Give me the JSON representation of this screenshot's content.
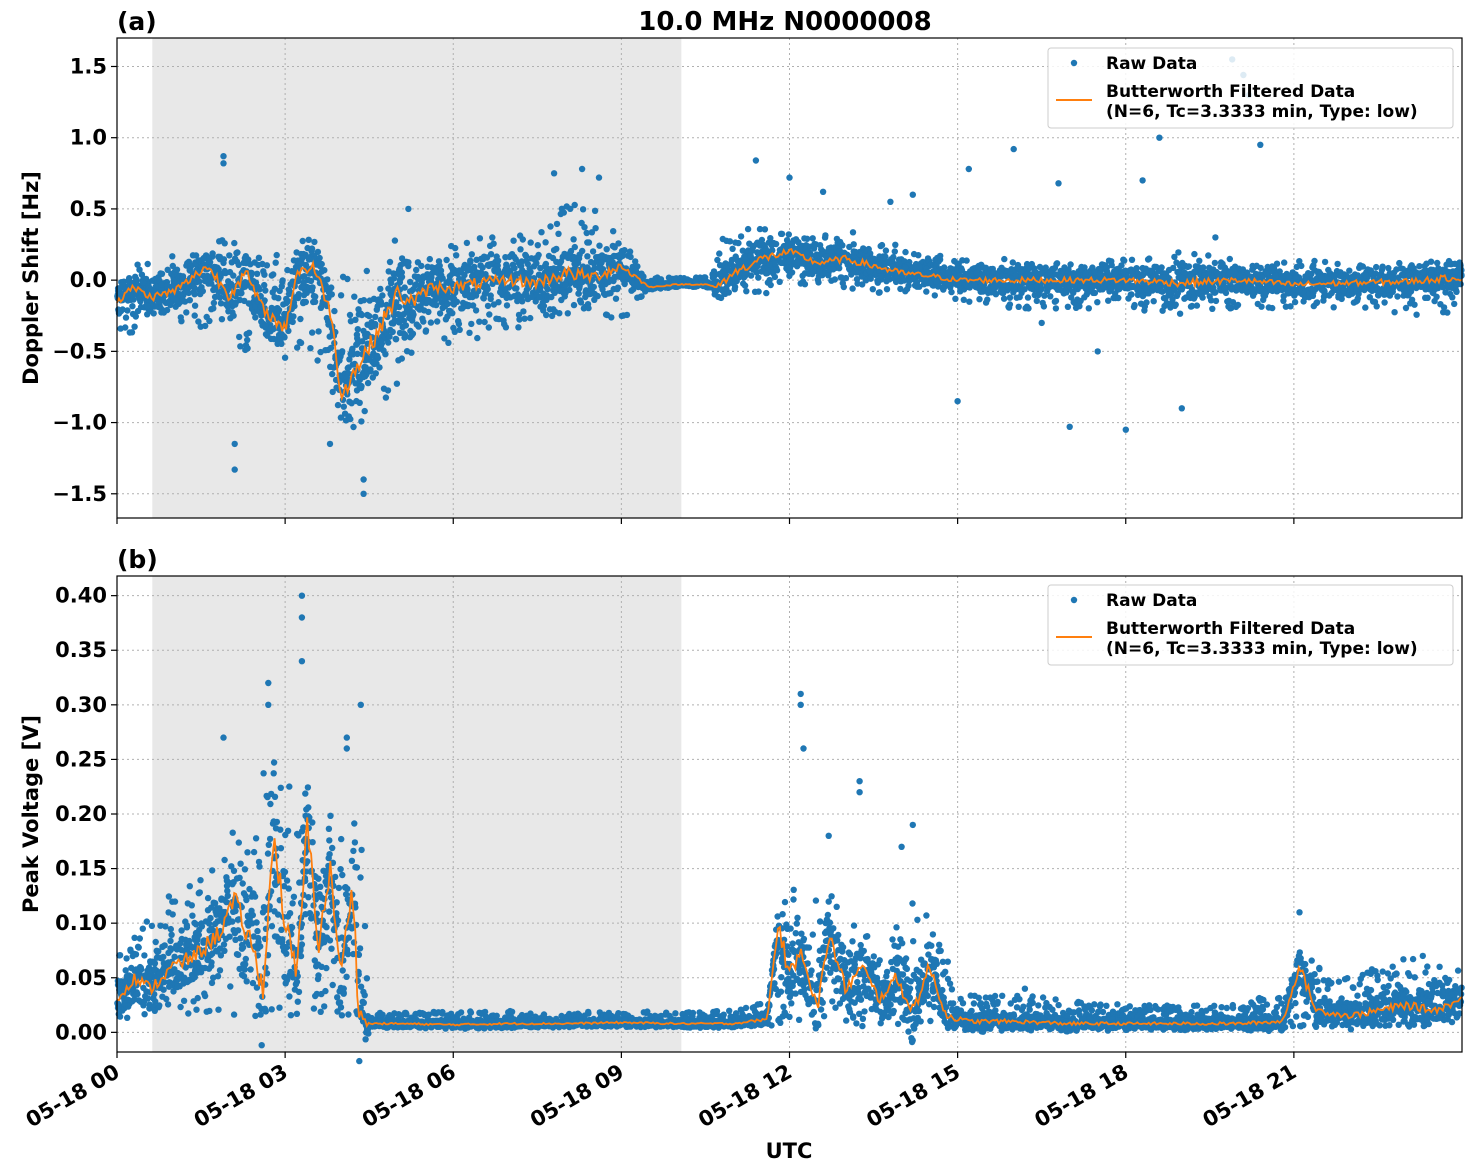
{
  "figure": {
    "title": "10.0 MHz N0000008",
    "xlabel": "UTC"
  },
  "colors": {
    "raw": "#1f77b4",
    "filtered": "#ff7f0e",
    "night_shade": "#e8e8e8"
  },
  "legend": {
    "raw_label": "Raw Data",
    "filtered_line1": "Butterworth Filtered Data",
    "filtered_line2": "(N=6, Tc=3.3333 min, Type: low)",
    "placement": "top-right"
  },
  "x_axis": {
    "range_hours": [
      0,
      24
    ],
    "ticks": [
      {
        "hour": 0,
        "label": "05-18 00"
      },
      {
        "hour": 3,
        "label": "05-18 03"
      },
      {
        "hour": 6,
        "label": "05-18 06"
      },
      {
        "hour": 9,
        "label": "05-18 09"
      },
      {
        "hour": 12,
        "label": "05-18 12"
      },
      {
        "hour": 15,
        "label": "05-18 15"
      },
      {
        "hour": 18,
        "label": "05-18 18"
      },
      {
        "hour": 21,
        "label": "05-18 21"
      }
    ]
  },
  "chart_data": [
    {
      "type": "scatter",
      "panel_label": "(a)",
      "ylabel": "Doppler Shift [Hz]",
      "ylim": [
        -1.67,
        1.7
      ],
      "yticks": [
        -1.5,
        -1.0,
        -0.5,
        0.0,
        0.5,
        1.0,
        1.5
      ],
      "ytick_labels": [
        "−1.5",
        "−1.0",
        "−0.5",
        "0.0",
        "0.5",
        "1.0",
        "1.5"
      ],
      "grid": true,
      "shade_hours": [
        0.63,
        10.07
      ],
      "series": [
        {
          "name": "Raw Data",
          "kind": "envelope",
          "x": [
            0,
            0.5,
            1,
            1.5,
            2,
            2.3,
            2.7,
            3,
            3.3,
            3.7,
            4,
            4.3,
            4.7,
            5,
            5.5,
            6,
            6.5,
            7,
            7.5,
            8,
            8.5,
            9,
            9.5,
            10,
            10.6,
            10.8,
            11,
            11.5,
            12,
            12.5,
            13,
            13.5,
            14,
            14.5,
            15,
            16,
            17,
            18,
            19,
            20,
            21,
            22,
            23,
            24
          ],
          "upper": [
            0.08,
            0.12,
            0.18,
            0.2,
            0.35,
            0.2,
            0.15,
            0.25,
            0.3,
            0.12,
            0.05,
            0.05,
            0.1,
            0.35,
            0.2,
            0.25,
            0.3,
            0.3,
            0.35,
            0.55,
            0.5,
            0.3,
            0.02,
            0.02,
            0.02,
            0.3,
            0.35,
            0.4,
            0.35,
            0.3,
            0.35,
            0.3,
            0.25,
            0.2,
            0.15,
            0.15,
            0.12,
            0.15,
            0.2,
            0.15,
            0.15,
            0.12,
            0.12,
            0.15
          ],
          "lower": [
            -0.4,
            -0.35,
            -0.3,
            -0.35,
            -0.45,
            -0.5,
            -0.45,
            -0.5,
            -0.5,
            -0.6,
            -1.0,
            -1.1,
            -0.9,
            -0.8,
            -0.5,
            -0.45,
            -0.4,
            -0.35,
            -0.3,
            -0.25,
            -0.2,
            -0.3,
            -0.05,
            -0.05,
            -0.05,
            -0.15,
            -0.1,
            -0.1,
            -0.05,
            -0.05,
            -0.05,
            -0.1,
            -0.1,
            -0.1,
            -0.15,
            -0.2,
            -0.2,
            -0.2,
            -0.25,
            -0.2,
            -0.2,
            -0.2,
            -0.25,
            -0.25
          ]
        },
        {
          "name": "Raw Data (outliers)",
          "kind": "points",
          "points": [
            [
              1.9,
              0.87
            ],
            [
              1.9,
              0.82
            ],
            [
              2.1,
              -1.33
            ],
            [
              2.1,
              -1.15
            ],
            [
              3.8,
              -1.15
            ],
            [
              4.4,
              -1.5
            ],
            [
              4.4,
              -1.4
            ],
            [
              5.2,
              0.5
            ],
            [
              7.8,
              0.75
            ],
            [
              8.3,
              0.78
            ],
            [
              8.6,
              0.72
            ],
            [
              11.4,
              0.84
            ],
            [
              12.0,
              0.72
            ],
            [
              12.6,
              0.62
            ],
            [
              13.8,
              0.55
            ],
            [
              14.2,
              0.6
            ],
            [
              15.0,
              -0.85
            ],
            [
              16.0,
              0.92
            ],
            [
              16.5,
              -0.3
            ],
            [
              17.0,
              -1.03
            ],
            [
              17.5,
              -0.5
            ],
            [
              18.0,
              -1.05
            ],
            [
              18.6,
              1.0
            ],
            [
              19.0,
              -0.9
            ],
            [
              19.6,
              0.3
            ],
            [
              19.9,
              1.55
            ],
            [
              20.1,
              1.44
            ],
            [
              20.2,
              1.3
            ],
            [
              20.4,
              0.95
            ],
            [
              15.2,
              0.78
            ],
            [
              16.8,
              0.68
            ],
            [
              18.3,
              0.7
            ]
          ]
        },
        {
          "name": "Butterworth Filtered Data (N=6, Tc=3.3333 min, Type: low)",
          "kind": "line",
          "x": [
            0,
            0.3,
            0.6,
            1,
            1.3,
            1.6,
            2,
            2.3,
            2.6,
            3,
            3.2,
            3.5,
            3.8,
            4,
            4.3,
            4.6,
            5,
            5.3,
            5.6,
            6,
            6.5,
            7,
            7.5,
            8,
            8.5,
            9,
            9.5,
            10,
            10.5,
            10.7,
            11,
            11.5,
            12,
            12.5,
            13,
            13.5,
            14,
            14.5,
            15,
            16,
            17,
            18,
            19,
            20,
            21,
            22,
            23,
            24
          ],
          "y": [
            -0.15,
            -0.05,
            -0.12,
            -0.08,
            0.0,
            0.1,
            -0.1,
            0.05,
            -0.2,
            -0.35,
            0.05,
            0.1,
            -0.2,
            -0.8,
            -0.6,
            -0.4,
            -0.1,
            -0.15,
            -0.05,
            -0.05,
            -0.02,
            0.0,
            -0.02,
            0.05,
            0.02,
            0.1,
            -0.05,
            -0.03,
            -0.03,
            -0.05,
            0.05,
            0.15,
            0.2,
            0.12,
            0.15,
            0.1,
            0.05,
            0.03,
            0.0,
            0.0,
            0.0,
            0.0,
            -0.02,
            0.0,
            -0.03,
            -0.02,
            -0.01,
            0.02
          ]
        }
      ]
    },
    {
      "type": "scatter",
      "panel_label": "(b)",
      "ylabel": "Peak Voltage [V]",
      "ylim": [
        -0.018,
        0.418
      ],
      "yticks": [
        0.0,
        0.05,
        0.1,
        0.15,
        0.2,
        0.25,
        0.3,
        0.35,
        0.4
      ],
      "ytick_labels": [
        "0.00",
        "0.05",
        "0.10",
        "0.15",
        "0.20",
        "0.25",
        "0.30",
        "0.35",
        "0.40"
      ],
      "grid": true,
      "shade_hours": [
        0.63,
        10.07
      ],
      "series": [
        {
          "name": "Raw Data",
          "kind": "envelope",
          "x": [
            0,
            0.5,
            1,
            1.5,
            2,
            2.5,
            2.8,
            3,
            3.3,
            3.6,
            4,
            4.2,
            4.35,
            4.5,
            5,
            6,
            7,
            8,
            9,
            10,
            11,
            11.7,
            11.9,
            12.3,
            12.7,
            13.2,
            13.7,
            14.2,
            14.6,
            15,
            16,
            17,
            18,
            19,
            20,
            20.9,
            21.2,
            21.6,
            22,
            22.5,
            23,
            23.5,
            24
          ],
          "upper": [
            0.08,
            0.1,
            0.13,
            0.14,
            0.18,
            0.22,
            0.27,
            0.22,
            0.25,
            0.2,
            0.2,
            0.2,
            0.22,
            0.02,
            0.018,
            0.02,
            0.02,
            0.018,
            0.02,
            0.018,
            0.02,
            0.03,
            0.15,
            0.13,
            0.13,
            0.1,
            0.08,
            0.12,
            0.1,
            0.04,
            0.035,
            0.03,
            0.025,
            0.025,
            0.025,
            0.04,
            0.08,
            0.05,
            0.05,
            0.06,
            0.07,
            0.06,
            0.06
          ],
          "lower": [
            0.01,
            0.01,
            0.015,
            0.015,
            0.015,
            0.015,
            0.015,
            0.015,
            0.015,
            0.015,
            0.015,
            0.01,
            0.005,
            0.005,
            0.005,
            0.005,
            0.005,
            0.005,
            0.005,
            0.005,
            0.005,
            0.005,
            0.01,
            0.01,
            0.01,
            0.005,
            0.005,
            0.005,
            0.005,
            0.003,
            0.003,
            0.003,
            0.003,
            0.003,
            0.003,
            0.003,
            0.005,
            0.005,
            0.005,
            0.005,
            0.005,
            0.005,
            0.005
          ]
        },
        {
          "name": "Raw Data (outliers)",
          "kind": "points",
          "points": [
            [
              3.3,
              0.4
            ],
            [
              3.3,
              0.38
            ],
            [
              3.3,
              0.34
            ],
            [
              2.7,
              0.32
            ],
            [
              2.7,
              0.3
            ],
            [
              4.35,
              0.3
            ],
            [
              4.1,
              0.27
            ],
            [
              4.1,
              0.26
            ],
            [
              1.9,
              0.27
            ],
            [
              12.2,
              0.31
            ],
            [
              12.2,
              0.3
            ],
            [
              12.25,
              0.26
            ],
            [
              13.25,
              0.23
            ],
            [
              13.25,
              0.22
            ],
            [
              12.7,
              0.18
            ],
            [
              14.0,
              0.17
            ],
            [
              14.2,
              0.19
            ],
            [
              21.1,
              0.11
            ],
            [
              23.3,
              0.07
            ],
            [
              23.6,
              0.06
            ],
            [
              16.2,
              0.04
            ]
          ]
        },
        {
          "name": "Butterworth Filtered Data (N=6, Tc=3.3333 min, Type: low)",
          "kind": "line",
          "x": [
            0,
            0.3,
            0.6,
            1,
            1.4,
            1.8,
            2.1,
            2.4,
            2.6,
            2.8,
            3.0,
            3.2,
            3.4,
            3.6,
            3.8,
            4.0,
            4.2,
            4.3,
            4.4,
            4.6,
            5,
            6,
            7,
            8,
            9,
            10,
            11,
            11.6,
            11.8,
            12.0,
            12.2,
            12.5,
            12.7,
            13.0,
            13.3,
            13.6,
            13.9,
            14.2,
            14.5,
            14.8,
            15.2,
            16,
            17,
            18,
            19,
            20,
            20.8,
            21.1,
            21.4,
            22,
            22.5,
            23,
            23.5,
            24
          ],
          "y": [
            0.03,
            0.05,
            0.04,
            0.06,
            0.07,
            0.09,
            0.12,
            0.08,
            0.04,
            0.18,
            0.1,
            0.05,
            0.19,
            0.08,
            0.15,
            0.05,
            0.14,
            0.03,
            0.008,
            0.008,
            0.008,
            0.007,
            0.008,
            0.008,
            0.009,
            0.008,
            0.008,
            0.012,
            0.1,
            0.05,
            0.08,
            0.02,
            0.09,
            0.04,
            0.06,
            0.03,
            0.05,
            0.02,
            0.06,
            0.015,
            0.01,
            0.01,
            0.008,
            0.008,
            0.008,
            0.008,
            0.01,
            0.06,
            0.02,
            0.015,
            0.02,
            0.025,
            0.02,
            0.03
          ]
        }
      ]
    }
  ]
}
